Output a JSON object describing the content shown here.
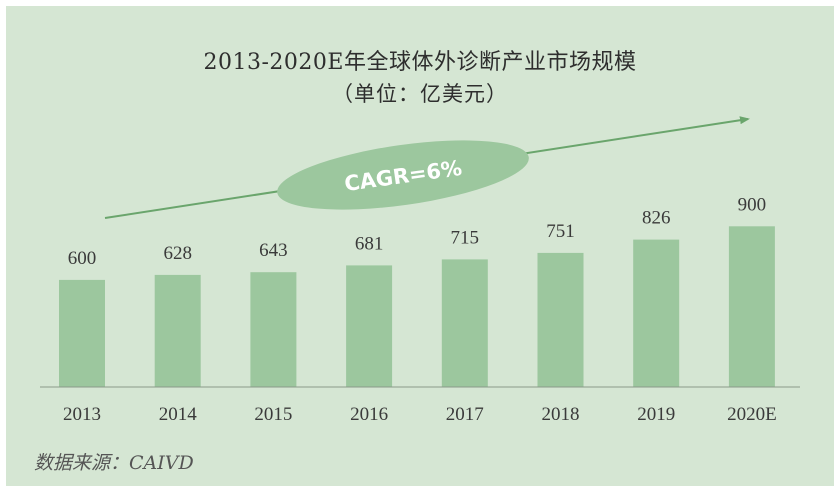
{
  "chart_data": {
    "type": "bar",
    "title": "2013-2020E年全球体外诊断产业市场规模",
    "subtitle": "（单位：亿美元）",
    "categories": [
      "2013",
      "2014",
      "2015",
      "2016",
      "2017",
      "2018",
      "2019",
      "2020E"
    ],
    "values": [
      600,
      628,
      643,
      681,
      715,
      751,
      826,
      900
    ],
    "ylim": [
      0,
      1000
    ],
    "annotation": "CAGR=6%",
    "source": "数据来源：CAIVD",
    "grid": false,
    "legend": "none",
    "colors": {
      "background": "#d5e6d3",
      "bar": "#9cc79e",
      "trend_arrow": "#6aa56c",
      "annotation_ellipse": "#9cc79e",
      "axis": "#8a9a8a"
    }
  }
}
